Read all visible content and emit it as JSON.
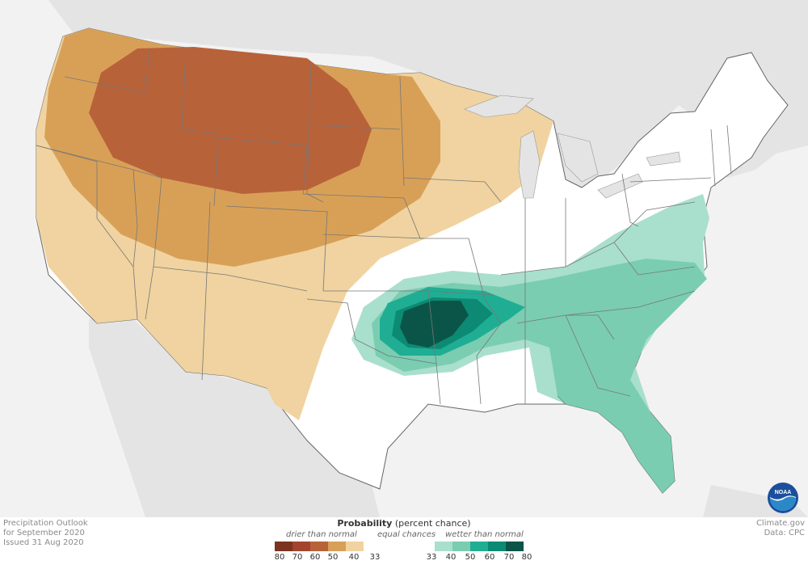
{
  "footer": {
    "left_lines": [
      "Precipitation Outlook",
      "for September 2020",
      "Issued 31 Aug 2020"
    ],
    "right_lines": [
      "Climate.gov",
      "Data: CPC"
    ]
  },
  "legend": {
    "title_bold": "Probability",
    "title_rest": " (percent chance)",
    "categories": {
      "drier": "drier than normal",
      "equal": "equal chances",
      "wetter": "wetter than normal"
    },
    "colors": {
      "drier_80": "#7b3420",
      "drier_70": "#a3442e",
      "drier_60": "#b8623a",
      "drier_50": "#d8a057",
      "drier_40": "#f0d3a0",
      "equal": "#ffffff",
      "wetter_40": "#a9dfcd",
      "wetter_50": "#7acdb1",
      "wetter_60": "#1fae93",
      "wetter_70": "#0c8a73",
      "wetter_80": "#0b5548"
    },
    "ticks": [
      "80",
      "70",
      "60",
      "50",
      "40",
      "33",
      "33",
      "40",
      "50",
      "60",
      "70",
      "80"
    ]
  },
  "map": {
    "land_color": "#e4e4e4",
    "water_color": "#f2f2f2",
    "border_color": "#777777",
    "logo": "noaa-logo"
  }
}
